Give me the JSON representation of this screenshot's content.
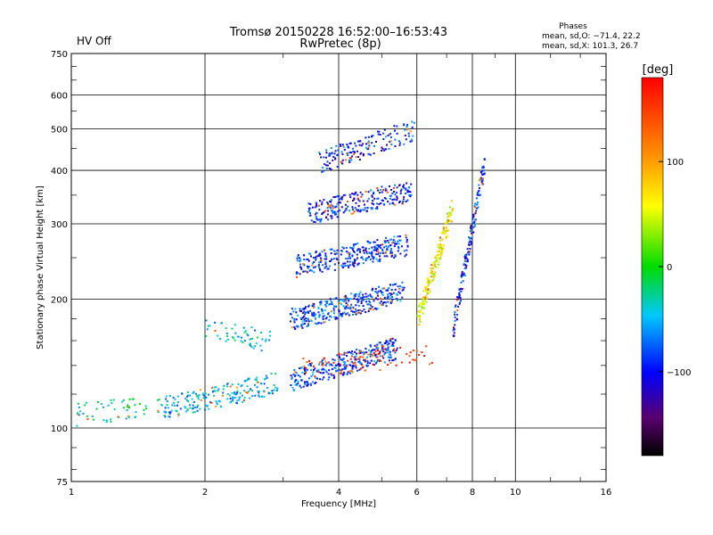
{
  "status_label": "HV Off",
  "status_color": "#d40000",
  "header": {
    "title_line1": "Tromsø 20150228 16:52:00–16:53:43",
    "title_line2": "RwPretec (8p)"
  },
  "phase_stats": {
    "title": "Phases",
    "line_o": "mean, sd,O: −71.4, 22.2",
    "line_x": "mean, sd,X: 101.3, 26.7"
  },
  "chart_data": {
    "type": "scatter",
    "xlabel": "Frequency [MHz]",
    "ylabel": "Stationary phase Virtual Height [km]",
    "x_scale": "log",
    "y_scale": "log",
    "xlim": [
      1,
      16
    ],
    "ylim": [
      75,
      750
    ],
    "grid": true,
    "x_ticks": [
      1,
      2,
      4,
      6,
      8,
      10,
      16
    ],
    "x_tick_labels": [
      "1",
      "2",
      "4",
      "6",
      "8",
      "10",
      "16"
    ],
    "y_ticks": [
      75,
      100,
      200,
      300,
      400,
      500,
      600,
      750
    ],
    "y_tick_labels": [
      "75",
      "100",
      "200",
      "300",
      "400",
      "500",
      "600",
      "750"
    ],
    "colorbar": {
      "unit": "[deg]",
      "range": [
        -180,
        180
      ],
      "ticks": [
        100,
        0,
        -100
      ],
      "tick_labels": [
        "100",
        "0",
        "−100"
      ],
      "placement": "right"
    },
    "traces": [
      {
        "f_range": [
          1.02,
          1.6
        ],
        "h_start": 108,
        "h_end": 114,
        "count": 60,
        "phase": -30
      },
      {
        "f_range": [
          1.6,
          2.9
        ],
        "h_start": 112,
        "h_end": 128,
        "count": 200,
        "phase": -55
      },
      {
        "f_range": [
          2.0,
          2.8
        ],
        "h_start": 175,
        "h_end": 160,
        "count": 55,
        "phase": -45
      },
      {
        "f_range": [
          3.1,
          5.4
        ],
        "h_start": 130,
        "h_end": 155,
        "count": 320,
        "phase": -85
      },
      {
        "f_range": [
          3.1,
          5.6
        ],
        "h_start": 180,
        "h_end": 210,
        "count": 320,
        "phase": -85
      },
      {
        "f_range": [
          3.2,
          5.7
        ],
        "h_start": 240,
        "h_end": 270,
        "count": 300,
        "phase": -90
      },
      {
        "f_range": [
          3.4,
          5.8
        ],
        "h_start": 320,
        "h_end": 360,
        "count": 240,
        "phase": -95
      },
      {
        "f_range": [
          3.6,
          5.9
        ],
        "h_start": 420,
        "h_end": 500,
        "count": 160,
        "phase": -90
      },
      {
        "f_range": [
          6.0,
          7.2
        ],
        "h_start": 180,
        "h_end": 330,
        "count": 180,
        "phase": 60
      },
      {
        "f_range": [
          7.2,
          8.5
        ],
        "h_start": 170,
        "h_end": 420,
        "count": 160,
        "phase": -95
      },
      {
        "f_range": [
          3.3,
          6.5
        ],
        "h_start": 140,
        "h_end": 150,
        "count": 70,
        "phase": 150
      }
    ]
  }
}
